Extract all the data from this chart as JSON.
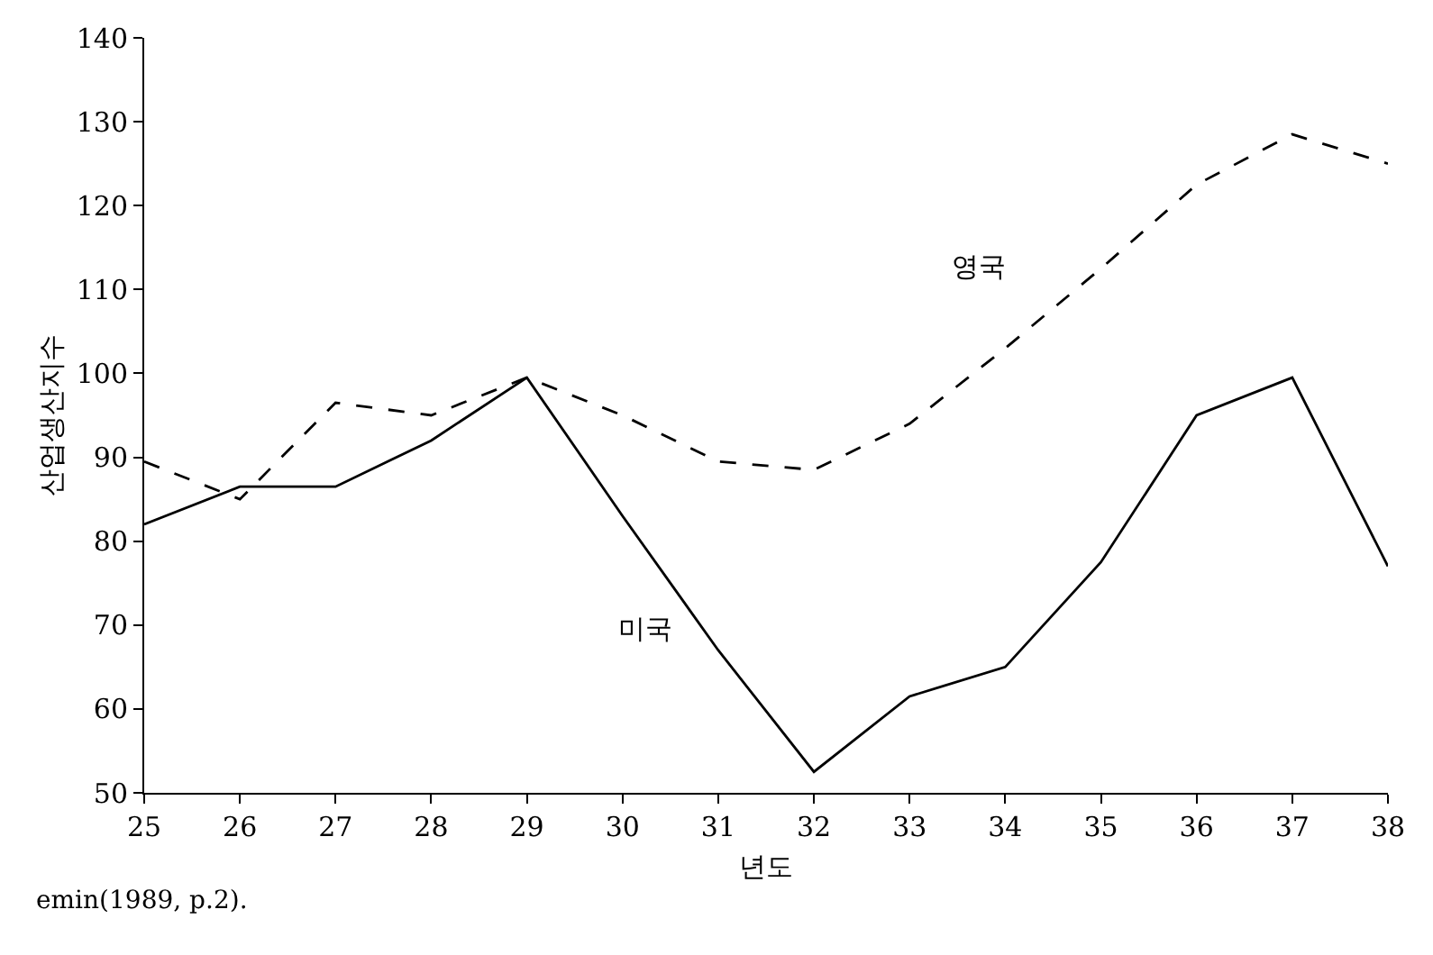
{
  "chart_data": {
    "type": "line",
    "xlabel": "년도",
    "ylabel": "산업생산지수",
    "x": [
      25,
      26,
      27,
      28,
      29,
      30,
      31,
      32,
      33,
      34,
      35,
      36,
      37,
      38
    ],
    "series": [
      {
        "name": "영국",
        "color": "#000000",
        "line_style": "dashed",
        "values": [
          89.5,
          85,
          96.5,
          95,
          99.5,
          95,
          89.5,
          88.5,
          94,
          103,
          112.5,
          122.5,
          128.5,
          125
        ]
      },
      {
        "name": "미국",
        "color": "#000000",
        "line_style": "solid",
        "values": [
          82,
          86.5,
          86.5,
          92,
          99.5,
          83,
          67,
          52.5,
          61.5,
          65,
          77.5,
          95,
          99.5,
          77
        ]
      }
    ],
    "xlim": [
      25,
      38
    ],
    "xticks": [
      25,
      26,
      27,
      28,
      29,
      30,
      31,
      32,
      33,
      34,
      35,
      36,
      37,
      38
    ],
    "ylim": [
      50,
      140
    ],
    "yticks": [
      50,
      60,
      70,
      80,
      90,
      100,
      110,
      120,
      130,
      140
    ],
    "legend": false,
    "marker": "none",
    "annotations": [
      "emin(1989, p.2)."
    ]
  }
}
